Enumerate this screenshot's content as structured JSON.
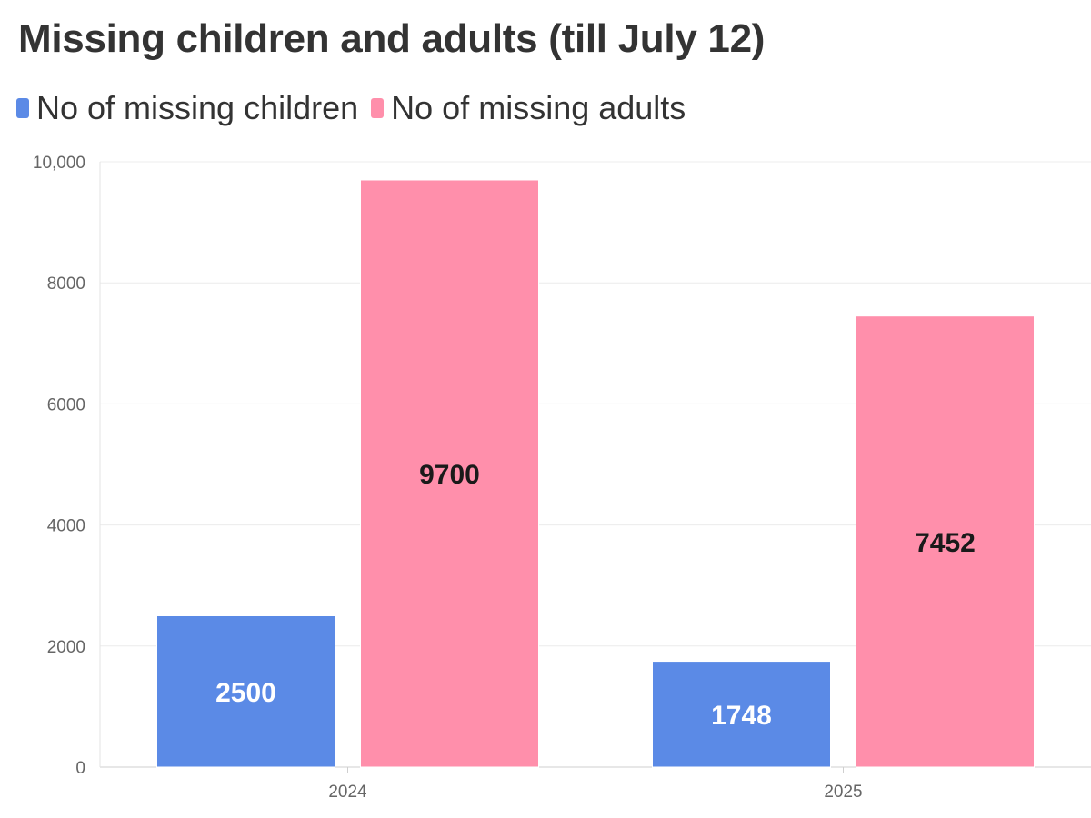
{
  "chart_data": {
    "type": "bar",
    "title": "Missing children and adults (till July 12)",
    "categories": [
      "2024",
      "2025"
    ],
    "series": [
      {
        "name": "No of missing children",
        "color": "#5b8ae6",
        "label_color": "#ffffff",
        "values": [
          2500,
          1748
        ]
      },
      {
        "name": "No of missing adults",
        "color": "#ff8fab",
        "label_color": "#1a1a1a",
        "values": [
          9700,
          7452
        ]
      }
    ],
    "y_ticks": [
      "0",
      "2000",
      "4000",
      "6000",
      "8000",
      "10,000"
    ],
    "ylim": [
      0,
      10000
    ],
    "xlabel": "",
    "ylabel": "",
    "grid": true,
    "legend_position": "top-left"
  }
}
